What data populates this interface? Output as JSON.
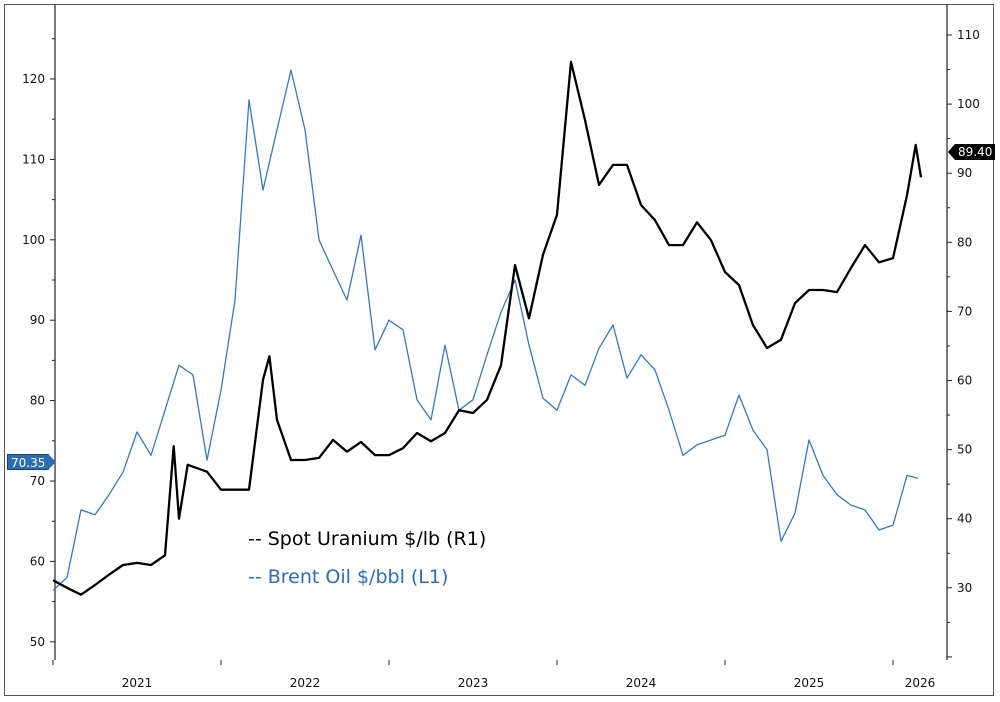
{
  "chart_data": {
    "type": "line",
    "title": "",
    "x_tick_labels": [
      "2021",
      "2022",
      "2023",
      "2024",
      "2025",
      "2026"
    ],
    "left_axis": {
      "ylim": [
        48,
        127
      ],
      "ticks": [
        50,
        60,
        70,
        80,
        90,
        100,
        110,
        120
      ]
    },
    "right_axis": {
      "ylim": [
        20,
        114
      ],
      "ticks": [
        30,
        40,
        50,
        60,
        70,
        80,
        90,
        100,
        110
      ]
    },
    "grid": false,
    "legend_placement": "bottom-center",
    "series": [
      {
        "name": "Spot Uranium $/lb (R1)",
        "legend": "-- Spot Uranium $/lb (R1)",
        "axis": "right",
        "color": "#000000",
        "last_value_label": "89.40",
        "points": [
          [
            "2021-01",
            31.1
          ],
          [
            "2021-02",
            30.0
          ],
          [
            "2021-03",
            29.0
          ],
          [
            "2021-04",
            30.4
          ],
          [
            "2021-05",
            31.9
          ],
          [
            "2021-06",
            33.3
          ],
          [
            "2021-07",
            33.6
          ],
          [
            "2021-08",
            33.3
          ],
          [
            "2021-09",
            34.7
          ],
          [
            "2021-09-20",
            50.5
          ],
          [
            "2021-10",
            40.0
          ],
          [
            "2021-10-20",
            47.8
          ],
          [
            "2021-12",
            46.8
          ],
          [
            "2022-01",
            44.2
          ],
          [
            "2022-02",
            44.2
          ],
          [
            "2022-03",
            44.2
          ],
          [
            "2022-04",
            60.1
          ],
          [
            "2022-04-15",
            63.5
          ],
          [
            "2022-05",
            54.3
          ],
          [
            "2022-06",
            48.5
          ],
          [
            "2022-07",
            48.5
          ],
          [
            "2022-08",
            48.8
          ],
          [
            "2022-09",
            51.4
          ],
          [
            "2022-10",
            49.7
          ],
          [
            "2022-11",
            51.1
          ],
          [
            "2022-12",
            49.2
          ],
          [
            "2023-01",
            49.2
          ],
          [
            "2023-02",
            50.2
          ],
          [
            "2023-03",
            52.4
          ],
          [
            "2023-04",
            51.2
          ],
          [
            "2023-05",
            52.4
          ],
          [
            "2023-06",
            55.7
          ],
          [
            "2023-07",
            55.3
          ],
          [
            "2023-08",
            57.2
          ],
          [
            "2023-09",
            62.2
          ],
          [
            "2023-10",
            76.7
          ],
          [
            "2023-11",
            69.0
          ],
          [
            "2023-12",
            78.2
          ],
          [
            "2024-01",
            84.0
          ],
          [
            "2024-02",
            106.1
          ],
          [
            "2024-03",
            97.7
          ],
          [
            "2024-04",
            88.3
          ],
          [
            "2024-05",
            91.2
          ],
          [
            "2024-06",
            91.2
          ],
          [
            "2024-07",
            85.4
          ],
          [
            "2024-08",
            83.2
          ],
          [
            "2024-09",
            79.6
          ],
          [
            "2024-10",
            79.6
          ],
          [
            "2024-11",
            82.9
          ],
          [
            "2024-12",
            80.3
          ],
          [
            "2025-01",
            75.7
          ],
          [
            "2025-02",
            73.8
          ],
          [
            "2025-03",
            68.0
          ],
          [
            "2025-04",
            64.7
          ],
          [
            "2025-05",
            65.9
          ],
          [
            "2025-06",
            71.2
          ],
          [
            "2025-07",
            73.1
          ],
          [
            "2025-08",
            73.1
          ],
          [
            "2025-09",
            72.8
          ],
          [
            "2025-10",
            76.3
          ],
          [
            "2025-11",
            79.6
          ],
          [
            "2025-12",
            77.1
          ],
          [
            "2026-01",
            77.7
          ],
          [
            "2026-02",
            86.8
          ],
          [
            "2026-02-20",
            94.1
          ],
          [
            "2026-03-01",
            89.4
          ]
        ]
      },
      {
        "name": "Brent Oil $/bbl (L1)",
        "legend": "-- Brent Oil $/bbl (L1)",
        "axis": "left",
        "color": "#3a78bd",
        "last_value_label": "70.35",
        "points": [
          [
            "2021-01",
            56.4
          ],
          [
            "2021-02",
            58.0
          ],
          [
            "2021-03",
            66.4
          ],
          [
            "2021-04",
            65.8
          ],
          [
            "2021-05",
            68.3
          ],
          [
            "2021-06",
            71.1
          ],
          [
            "2021-07",
            76.1
          ],
          [
            "2021-08",
            73.2
          ],
          [
            "2021-09",
            78.8
          ],
          [
            "2021-10",
            84.4
          ],
          [
            "2021-11",
            83.2
          ],
          [
            "2021-12",
            72.6
          ],
          [
            "2022-01",
            81.3
          ],
          [
            "2022-02",
            92.5
          ],
          [
            "2022-03",
            117.4
          ],
          [
            "2022-04",
            106.2
          ],
          [
            "2022-05",
            113.7
          ],
          [
            "2022-06",
            121.1
          ],
          [
            "2022-07",
            113.7
          ],
          [
            "2022-08",
            100.0
          ],
          [
            "2022-09",
            96.2
          ],
          [
            "2022-10",
            92.5
          ],
          [
            "2022-11",
            100.6
          ],
          [
            "2022-12",
            86.3
          ],
          [
            "2023-01",
            90.0
          ],
          [
            "2023-02",
            88.8
          ],
          [
            "2023-03",
            80.1
          ],
          [
            "2023-04",
            77.6
          ],
          [
            "2023-05",
            86.9
          ],
          [
            "2023-06",
            78.8
          ],
          [
            "2023-07",
            80.1
          ],
          [
            "2023-08",
            85.7
          ],
          [
            "2023-09",
            91.0
          ],
          [
            "2023-10",
            95.0
          ],
          [
            "2023-11",
            86.9
          ],
          [
            "2023-12",
            80.3
          ],
          [
            "2024-01",
            78.8
          ],
          [
            "2024-02",
            83.2
          ],
          [
            "2024-03",
            81.9
          ],
          [
            "2024-04",
            86.5
          ],
          [
            "2024-05",
            89.4
          ],
          [
            "2024-06",
            82.8
          ],
          [
            "2024-07",
            85.7
          ],
          [
            "2024-08",
            83.8
          ],
          [
            "2024-09",
            78.8
          ],
          [
            "2024-10",
            73.2
          ],
          [
            "2024-11",
            74.5
          ],
          [
            "2024-12",
            75.1
          ],
          [
            "2025-01",
            75.7
          ],
          [
            "2025-02",
            80.7
          ],
          [
            "2025-03",
            76.3
          ],
          [
            "2025-04",
            73.9
          ],
          [
            "2025-05",
            62.5
          ],
          [
            "2025-06",
            66.0
          ],
          [
            "2025-07",
            75.1
          ],
          [
            "2025-08",
            70.7
          ],
          [
            "2025-09",
            68.3
          ],
          [
            "2025-10",
            67.0
          ],
          [
            "2025-11",
            66.4
          ],
          [
            "2025-12",
            63.9
          ],
          [
            "2026-01",
            64.5
          ],
          [
            "2026-02",
            70.7
          ],
          [
            "2026-02-25",
            70.35
          ]
        ]
      }
    ]
  }
}
